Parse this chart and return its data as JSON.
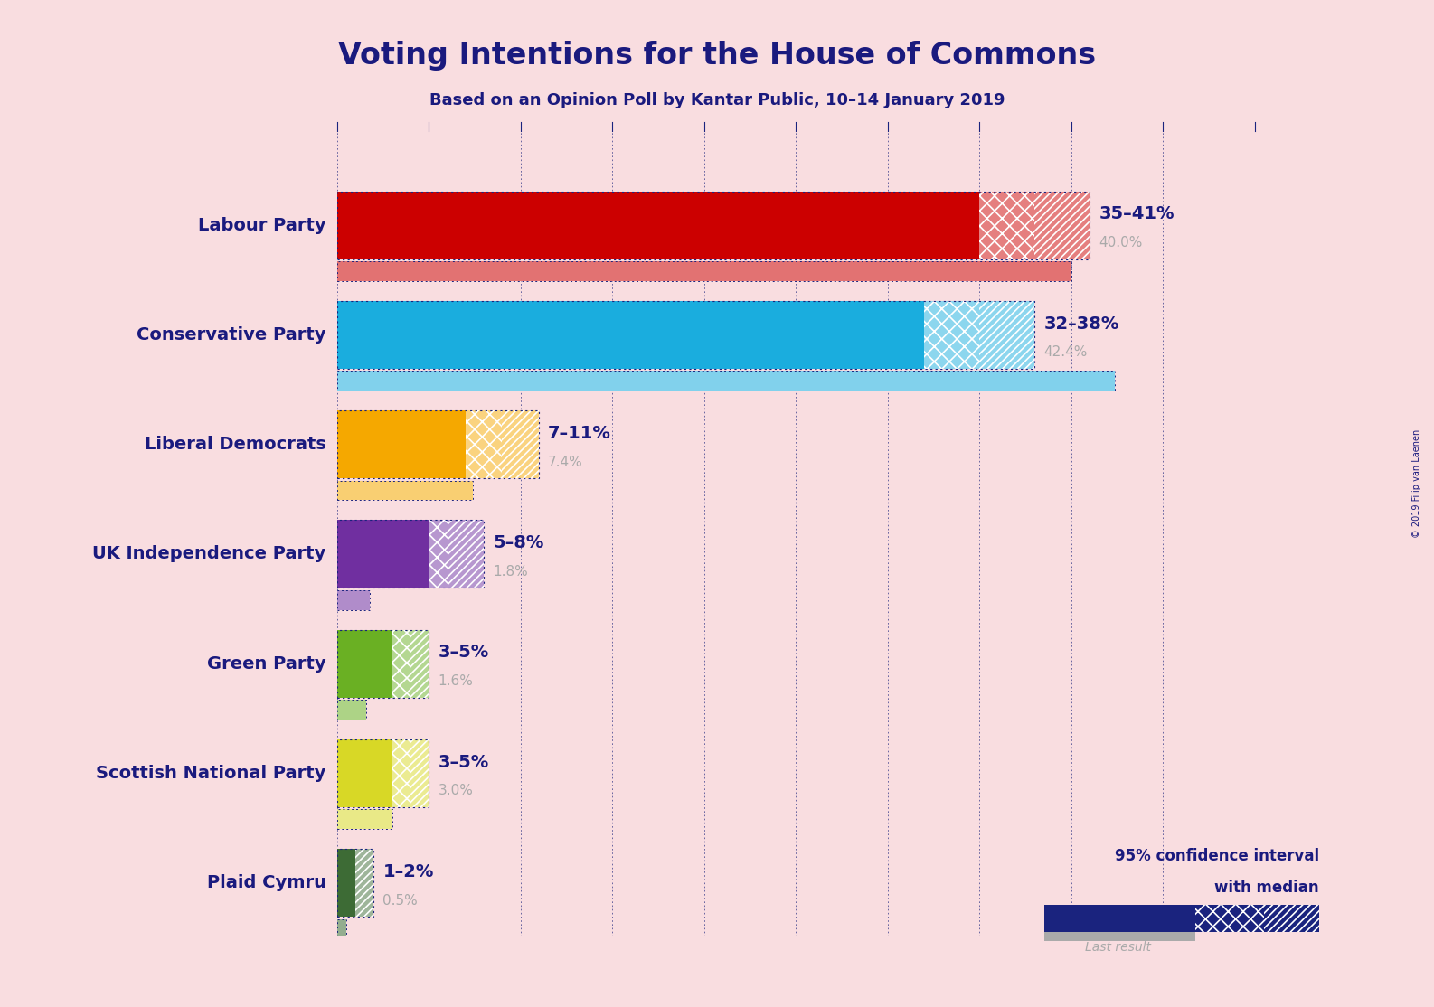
{
  "title": "Voting Intentions for the House of Commons",
  "subtitle": "Based on an Opinion Poll by Kantar Public, 10–14 January 2019",
  "copyright": "© 2019 Filip van Laenen",
  "background_color": "#f9dde0",
  "title_color": "#1a1a7e",
  "subtitle_color": "#1a1a7e",
  "parties": [
    {
      "name": "Labour Party",
      "color": "#cc0000",
      "last_result": 40.0,
      "ci_low": 35,
      "ci_high": 41,
      "median": 38
    },
    {
      "name": "Conservative Party",
      "color": "#1aadde",
      "last_result": 42.4,
      "ci_low": 32,
      "ci_high": 38,
      "median": 35
    },
    {
      "name": "Liberal Democrats",
      "color": "#f5a800",
      "last_result": 7.4,
      "ci_low": 7,
      "ci_high": 11,
      "median": 9
    },
    {
      "name": "UK Independence Party",
      "color": "#702fa0",
      "last_result": 1.8,
      "ci_low": 5,
      "ci_high": 8,
      "median": 6
    },
    {
      "name": "Green Party",
      "color": "#6ab023",
      "last_result": 1.6,
      "ci_low": 3,
      "ci_high": 5,
      "median": 4
    },
    {
      "name": "Scottish National Party",
      "color": "#d8d826",
      "last_result": 3.0,
      "ci_low": 3,
      "ci_high": 5,
      "median": 4
    },
    {
      "name": "Plaid Cymru",
      "color": "#3d6b35",
      "last_result": 0.5,
      "ci_low": 1,
      "ci_high": 2,
      "median": 1
    }
  ],
  "xlim": [
    0,
    50
  ],
  "label_color": "#1a1a7e",
  "value_color": "#aaaaaa",
  "legend_text_color": "#1a1a7e",
  "last_result_color_alpha": 0.45,
  "dark_blue": "#1a237e"
}
